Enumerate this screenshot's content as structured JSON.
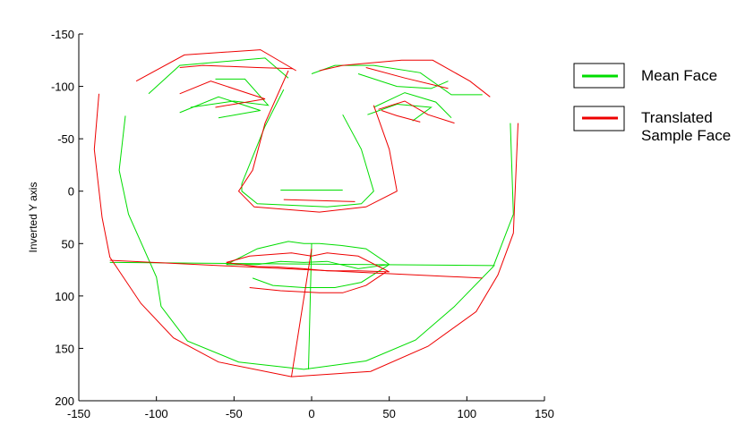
{
  "chart_data": {
    "type": "line",
    "title": "",
    "xlabel": "",
    "ylabel": "Inverted Y axis",
    "xlim": [
      -150,
      150
    ],
    "ylim": [
      -150,
      200
    ],
    "y_inverted": true,
    "xticks": [
      -150,
      -100,
      -50,
      0,
      50,
      100,
      150
    ],
    "yticks": [
      -150,
      -100,
      -50,
      0,
      50,
      100,
      150,
      200
    ],
    "grid": false,
    "legend_position": "top-right",
    "series": [
      {
        "name": "Mean Face",
        "color": "#00dd00",
        "segments": [
          [
            [
              -120,
              -72
            ],
            [
              -124,
              -20
            ],
            [
              -118,
              22
            ],
            [
              -100,
              82
            ],
            [
              -97,
              110
            ],
            [
              -80,
              143
            ],
            [
              -47,
              163
            ],
            [
              -5,
              170
            ],
            [
              35,
              162
            ],
            [
              67,
              142
            ],
            [
              92,
              110
            ],
            [
              117,
              72
            ],
            [
              130,
              22
            ],
            [
              128,
              -65
            ]
          ],
          [
            [
              -105,
              -93
            ],
            [
              -85,
              -120
            ],
            [
              -30,
              -127
            ],
            [
              -15,
              -108
            ]
          ],
          [
            [
              -78,
              -80
            ],
            [
              -50,
              -86
            ],
            [
              -28,
              -82
            ],
            [
              -43,
              -107
            ],
            [
              -62,
              -107
            ]
          ],
          [
            [
              -85,
              -75
            ],
            [
              -60,
              -90
            ],
            [
              -33,
              -77
            ],
            [
              -60,
              -70
            ]
          ],
          [
            [
              0,
              -112
            ],
            [
              15,
              -120
            ],
            [
              40,
              -120
            ],
            [
              70,
              -113
            ],
            [
              90,
              -92
            ],
            [
              110,
              -92
            ]
          ],
          [
            [
              30,
              -112
            ],
            [
              55,
              -100
            ],
            [
              77,
              -98
            ],
            [
              88,
              -105
            ]
          ],
          [
            [
              40,
              -80
            ],
            [
              60,
              -94
            ],
            [
              80,
              -85
            ],
            [
              90,
              -70
            ]
          ],
          [
            [
              36,
              -73
            ],
            [
              55,
              -83
            ],
            [
              77,
              -80
            ],
            [
              65,
              -67
            ]
          ],
          [
            [
              -18,
              -97
            ],
            [
              -30,
              -62
            ],
            [
              -45,
              -7
            ],
            [
              -45,
              0
            ],
            [
              -35,
              12
            ],
            [
              10,
              15
            ],
            [
              32,
              12
            ],
            [
              40,
              0
            ],
            [
              32,
              -40
            ],
            [
              20,
              -73
            ]
          ],
          [
            [
              -20,
              -1
            ],
            [
              20,
              -1
            ]
          ],
          [
            [
              -55,
              70
            ],
            [
              -35,
              55
            ],
            [
              -15,
              48
            ],
            [
              -5,
              50
            ],
            [
              5,
              50
            ],
            [
              20,
              52
            ],
            [
              35,
              55
            ],
            [
              50,
              70
            ],
            [
              30,
              74
            ],
            [
              10,
              67
            ],
            [
              -5,
              68
            ],
            [
              -20,
              67
            ],
            [
              -35,
              70
            ],
            [
              -55,
              70
            ]
          ],
          [
            [
              -38,
              83
            ],
            [
              -25,
              90
            ],
            [
              -5,
              92
            ],
            [
              15,
              92
            ],
            [
              32,
              87
            ],
            [
              50,
              70
            ]
          ],
          [
            [
              0,
              50
            ],
            [
              -2,
              170
            ]
          ],
          [
            [
              -130,
              68
            ],
            [
              118,
              71
            ]
          ]
        ]
      },
      {
        "name": "Translated Sample Face",
        "color": "#ee0000",
        "segments": [
          [
            [
              -137,
              -93
            ],
            [
              -140,
              -40
            ],
            [
              -135,
              25
            ],
            [
              -130,
              63
            ],
            [
              -110,
              107
            ],
            [
              -89,
              140
            ],
            [
              -60,
              163
            ],
            [
              -13,
              177
            ],
            [
              38,
              172
            ],
            [
              75,
              148
            ],
            [
              106,
              115
            ],
            [
              120,
              80
            ],
            [
              130,
              40
            ],
            [
              133,
              -65
            ]
          ],
          [
            [
              -113,
              -105
            ],
            [
              -82,
              -130
            ],
            [
              -33,
              -135
            ],
            [
              -10,
              -115
            ]
          ],
          [
            [
              -85,
              -118
            ],
            [
              -70,
              -120
            ],
            [
              -35,
              -118
            ],
            [
              -12,
              -117
            ]
          ],
          [
            [
              -85,
              -93
            ],
            [
              -65,
              -105
            ],
            [
              -30,
              -88
            ],
            [
              -62,
              -80
            ]
          ],
          [
            [
              5,
              -115
            ],
            [
              20,
              -120
            ],
            [
              58,
              -125
            ],
            [
              78,
              -125
            ],
            [
              102,
              -105
            ],
            [
              115,
              -90
            ]
          ],
          [
            [
              35,
              -118
            ],
            [
              60,
              -108
            ],
            [
              88,
              -98
            ]
          ],
          [
            [
              43,
              -78
            ],
            [
              60,
              -86
            ],
            [
              75,
              -73
            ],
            [
              92,
              -65
            ]
          ],
          [
            [
              45,
              -77
            ],
            [
              55,
              -72
            ],
            [
              70,
              -66
            ]
          ],
          [
            [
              -15,
              -115
            ],
            [
              -30,
              -65
            ],
            [
              -38,
              -20
            ],
            [
              -47,
              0
            ],
            [
              -37,
              15
            ],
            [
              5,
              20
            ],
            [
              35,
              15
            ],
            [
              55,
              0
            ],
            [
              50,
              -40
            ],
            [
              40,
              -82
            ]
          ],
          [
            [
              -18,
              8
            ],
            [
              28,
              10
            ]
          ],
          [
            [
              -55,
              68
            ],
            [
              -40,
              62
            ],
            [
              -13,
              59
            ],
            [
              0,
              62
            ],
            [
              10,
              59
            ],
            [
              30,
              62
            ],
            [
              50,
              77
            ],
            [
              30,
              76
            ],
            [
              10,
              76
            ],
            [
              -5,
              74
            ],
            [
              -25,
              72
            ],
            [
              -35,
              72
            ],
            [
              -55,
              68
            ]
          ],
          [
            [
              -40,
              92
            ],
            [
              -20,
              95
            ],
            [
              5,
              97
            ],
            [
              20,
              97
            ],
            [
              35,
              90
            ],
            [
              48,
              77
            ]
          ],
          [
            [
              -13,
              177
            ],
            [
              0,
              55
            ]
          ],
          [
            [
              -130,
              66
            ],
            [
              110,
              83
            ]
          ]
        ]
      }
    ]
  }
}
